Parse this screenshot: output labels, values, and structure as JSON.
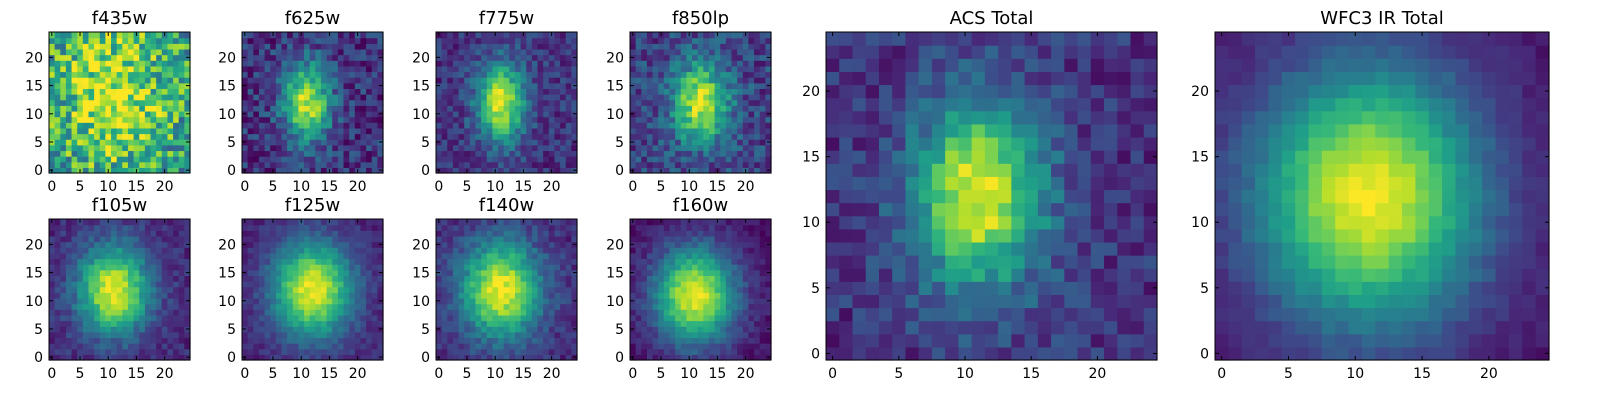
{
  "figure": {
    "colormap": "viridis",
    "colormap_stops": [
      "#440154",
      "#482878",
      "#3e4989",
      "#31688e",
      "#26828e",
      "#1f9e89",
      "#35b779",
      "#6ece58",
      "#b5de2b",
      "#fde725"
    ]
  },
  "chart_data": [
    {
      "type": "heatmap",
      "title": "f435w",
      "grid_size": 25,
      "xlim": [
        0,
        24
      ],
      "ylim": [
        0,
        24
      ],
      "xticks": [
        "0",
        "5",
        "10",
        "15",
        "20"
      ],
      "yticks": [
        "0",
        "5",
        "10",
        "15",
        "20"
      ],
      "center": [
        11,
        13
      ],
      "sigma": [
        6,
        8
      ],
      "intensity_range": [
        0.55,
        0.95
      ],
      "noise": 0.3,
      "seed": 11
    },
    {
      "type": "heatmap",
      "title": "f625w",
      "grid_size": 25,
      "xlim": [
        0,
        24
      ],
      "ylim": [
        0,
        24
      ],
      "xticks": [
        "0",
        "5",
        "10",
        "15",
        "20"
      ],
      "yticks": [
        "0",
        "5",
        "10",
        "15",
        "20"
      ],
      "center": [
        11,
        12
      ],
      "sigma": [
        3,
        5
      ],
      "intensity_range": [
        0.15,
        0.9
      ],
      "noise": 0.16,
      "seed": 22
    },
    {
      "type": "heatmap",
      "title": "f775w",
      "grid_size": 25,
      "xlim": [
        0,
        24
      ],
      "ylim": [
        0,
        24
      ],
      "xticks": [
        "0",
        "5",
        "10",
        "15",
        "20"
      ],
      "yticks": [
        "0",
        "5",
        "10",
        "15",
        "20"
      ],
      "center": [
        11,
        12
      ],
      "sigma": [
        3,
        5
      ],
      "intensity_range": [
        0.15,
        0.95
      ],
      "noise": 0.13,
      "seed": 33
    },
    {
      "type": "heatmap",
      "title": "f850lp",
      "grid_size": 25,
      "xlim": [
        0,
        24
      ],
      "ylim": [
        0,
        24
      ],
      "xticks": [
        "0",
        "5",
        "10",
        "15",
        "20"
      ],
      "yticks": [
        "0",
        "5",
        "10",
        "15",
        "20"
      ],
      "center": [
        12,
        12
      ],
      "sigma": [
        3.5,
        5
      ],
      "intensity_range": [
        0.2,
        0.92
      ],
      "noise": 0.16,
      "seed": 44
    },
    {
      "type": "heatmap",
      "title": "f105w",
      "grid_size": 25,
      "xlim": [
        0,
        24
      ],
      "ylim": [
        0,
        24
      ],
      "xticks": [
        "0",
        "5",
        "10",
        "15",
        "20"
      ],
      "yticks": [
        "0",
        "5",
        "10",
        "15",
        "20"
      ],
      "center": [
        11,
        12
      ],
      "sigma": [
        4.5,
        5.5
      ],
      "intensity_range": [
        0.12,
        0.97
      ],
      "noise": 0.09,
      "seed": 55
    },
    {
      "type": "heatmap",
      "title": "f125w",
      "grid_size": 25,
      "xlim": [
        0,
        24
      ],
      "ylim": [
        0,
        24
      ],
      "xticks": [
        "0",
        "5",
        "10",
        "15",
        "20"
      ],
      "yticks": [
        "0",
        "5",
        "10",
        "15",
        "20"
      ],
      "center": [
        12,
        12
      ],
      "sigma": [
        5,
        6
      ],
      "intensity_range": [
        0.1,
        0.97
      ],
      "noise": 0.07,
      "seed": 66
    },
    {
      "type": "heatmap",
      "title": "f140w",
      "grid_size": 25,
      "xlim": [
        0,
        24
      ],
      "ylim": [
        0,
        24
      ],
      "xticks": [
        "0",
        "5",
        "10",
        "15",
        "20"
      ],
      "yticks": [
        "0",
        "5",
        "10",
        "15",
        "20"
      ],
      "center": [
        11,
        12
      ],
      "sigma": [
        5,
        6
      ],
      "intensity_range": [
        0.12,
        0.97
      ],
      "noise": 0.09,
      "seed": 77
    },
    {
      "type": "heatmap",
      "title": "f160w",
      "grid_size": 25,
      "xlim": [
        0,
        24
      ],
      "ylim": [
        0,
        24
      ],
      "xticks": [
        "0",
        "5",
        "10",
        "15",
        "20"
      ],
      "yticks": [
        "0",
        "5",
        "10",
        "15",
        "20"
      ],
      "center": [
        11,
        11
      ],
      "sigma": [
        5,
        6
      ],
      "intensity_range": [
        0.05,
        0.97
      ],
      "noise": 0.07,
      "seed": 88
    },
    {
      "type": "heatmap",
      "title": "ACS Total",
      "grid_size": 25,
      "xlim": [
        0,
        24
      ],
      "ylim": [
        0,
        24
      ],
      "xticks": [
        "0",
        "5",
        "10",
        "15",
        "20"
      ],
      "yticks": [
        "0",
        "5",
        "10",
        "15",
        "20"
      ],
      "center": [
        11,
        12
      ],
      "sigma": [
        3.5,
        5
      ],
      "intensity_range": [
        0.15,
        0.97
      ],
      "noise": 0.12,
      "seed": 99
    },
    {
      "type": "heatmap",
      "title": "WFC3 IR Total",
      "grid_size": 25,
      "xlim": [
        0,
        24
      ],
      "ylim": [
        0,
        24
      ],
      "xticks": [
        "0",
        "5",
        "10",
        "15",
        "20"
      ],
      "yticks": [
        "0",
        "5",
        "10",
        "15",
        "20"
      ],
      "center": [
        11,
        12
      ],
      "sigma": [
        6,
        7
      ],
      "intensity_range": [
        0.05,
        0.98
      ],
      "noise": 0.04,
      "seed": 111
    }
  ]
}
